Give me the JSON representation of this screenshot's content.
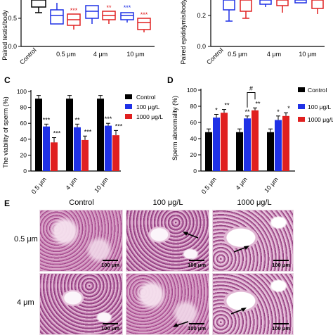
{
  "panels": {
    "C": "C",
    "D": "D",
    "E": "E"
  },
  "panel_a": {
    "ylabel": "Paired testis/body",
    "yticks": [
      "0.5",
      "0.0"
    ],
    "categories": [
      "Control",
      "0.5 μm",
      "4 μm",
      "10 μm"
    ],
    "annotations": [
      "***",
      "**",
      "***",
      "***"
    ]
  },
  "panel_b": {
    "ylabel": "Paired epididymis/body",
    "yticks": [
      "0.2",
      "0.0"
    ],
    "categories": [
      "Control",
      "0.5 μm",
      "4 μm",
      "10 μm"
    ]
  },
  "legend": {
    "control": "Control",
    "low": "100 μg/L",
    "high": "1000 μg/L"
  },
  "colors": {
    "control": "#000000",
    "low": "#1f31e6",
    "high": "#e02020"
  },
  "chart_data": [
    {
      "panel": "C",
      "type": "bar",
      "ylabel": "The viability of sperm (%)",
      "ylim": [
        0,
        100
      ],
      "yticks": [
        0,
        20,
        40,
        60,
        80,
        100
      ],
      "categories": [
        "0.5 μm",
        "4 μm",
        "10 μm"
      ],
      "series": [
        {
          "name": "Control",
          "values": [
            91,
            91,
            91
          ],
          "errors": [
            4,
            4,
            4
          ]
        },
        {
          "name": "100 μg/L",
          "values": [
            56,
            55,
            57
          ],
          "errors": [
            3,
            4,
            3
          ]
        },
        {
          "name": "1000 μg/L",
          "values": [
            36,
            39,
            45
          ],
          "errors": [
            6,
            5,
            6
          ]
        }
      ],
      "stars": [
        [
          "",
          "***",
          "***"
        ],
        [
          "",
          "**",
          "***"
        ],
        [
          "",
          "***",
          "***"
        ]
      ]
    },
    {
      "panel": "D",
      "type": "bar",
      "ylabel": "Sperm abnormality (%)",
      "ylim": [
        0,
        100
      ],
      "yticks": [
        0,
        20,
        40,
        60,
        80,
        100
      ],
      "categories": [
        "0.5 μm",
        "4 μm",
        "10 μm"
      ],
      "series": [
        {
          "name": "Control",
          "values": [
            48,
            48,
            48
          ],
          "errors": [
            4,
            4,
            4
          ]
        },
        {
          "name": "100 μg/L",
          "values": [
            66,
            65,
            63
          ],
          "errors": [
            4,
            3,
            5
          ]
        },
        {
          "name": "1000 μg/L",
          "values": [
            72,
            75,
            68
          ],
          "errors": [
            4,
            3,
            4
          ]
        }
      ],
      "stars": [
        [
          "",
          "*",
          "**"
        ],
        [
          "",
          "**",
          "**"
        ],
        [
          "",
          "*",
          "*"
        ]
      ],
      "bracket": {
        "group": 1,
        "label": "#"
      }
    }
  ],
  "histology": {
    "columns": [
      "Control",
      "100 μg/L",
      "1000 μg/L"
    ],
    "rows": [
      "0.5 μm",
      "4 μm"
    ],
    "scale": "100 μm"
  }
}
